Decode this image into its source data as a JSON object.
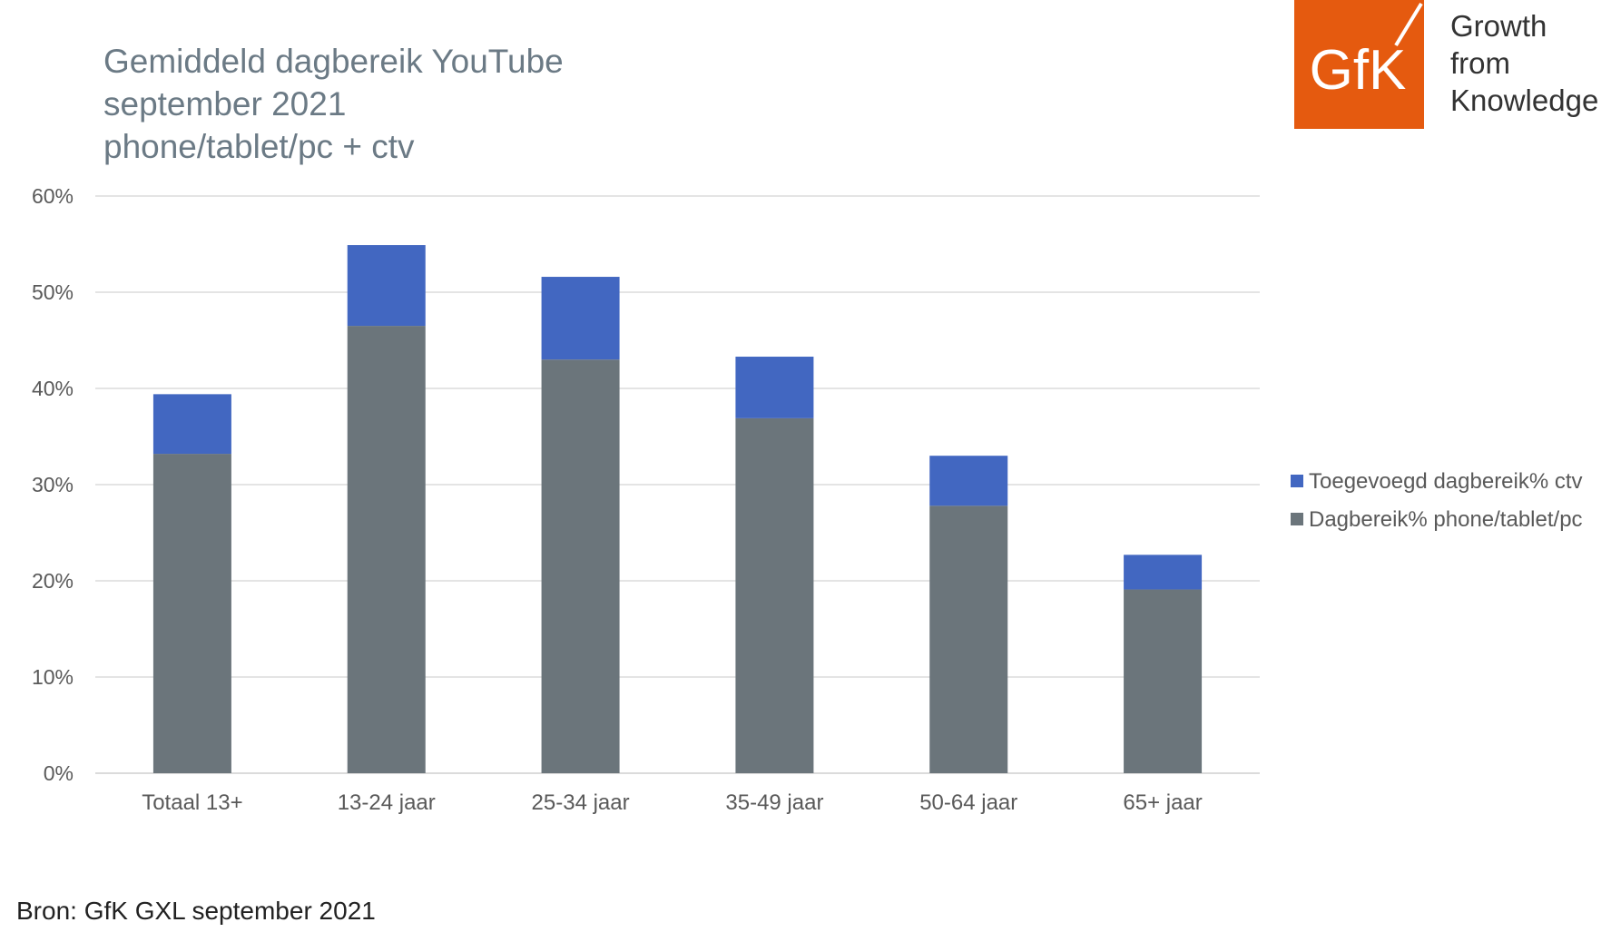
{
  "brand": {
    "logo_text": "GfK",
    "tagline": [
      "Growth",
      "from",
      "Knowledge"
    ],
    "colors": {
      "logo_bg": "#e55a0f",
      "logo_fg": "#ffffff"
    }
  },
  "source": "Bron: GfK GXL september 2021",
  "chart_data": {
    "type": "bar",
    "stacked": true,
    "title": [
      "Gemiddeld dagbereik YouTube",
      "september 2021",
      "phone/tablet/pc + ctv"
    ],
    "xlabel": "",
    "ylabel": "",
    "ylim": [
      0,
      60
    ],
    "yticks": [
      "0%",
      "10%",
      "20%",
      "30%",
      "40%",
      "50%",
      "60%"
    ],
    "grid": true,
    "legend_position": "right",
    "categories": [
      "Totaal 13+",
      "13-24 jaar",
      "25-34 jaar",
      "35-49 jaar",
      "50-64 jaar",
      "65+ jaar"
    ],
    "series": [
      {
        "name": "Dagbereik% phone/tablet/pc",
        "color": "#6b757b",
        "values": [
          33.2,
          46.5,
          43.0,
          36.9,
          27.8,
          19.1
        ]
      },
      {
        "name": "Toegevoegd dagbereik% ctv",
        "color": "#4267c1",
        "values": [
          6.2,
          8.4,
          8.6,
          6.4,
          5.2,
          3.6
        ]
      }
    ],
    "legend_order": [
      1,
      0
    ]
  }
}
